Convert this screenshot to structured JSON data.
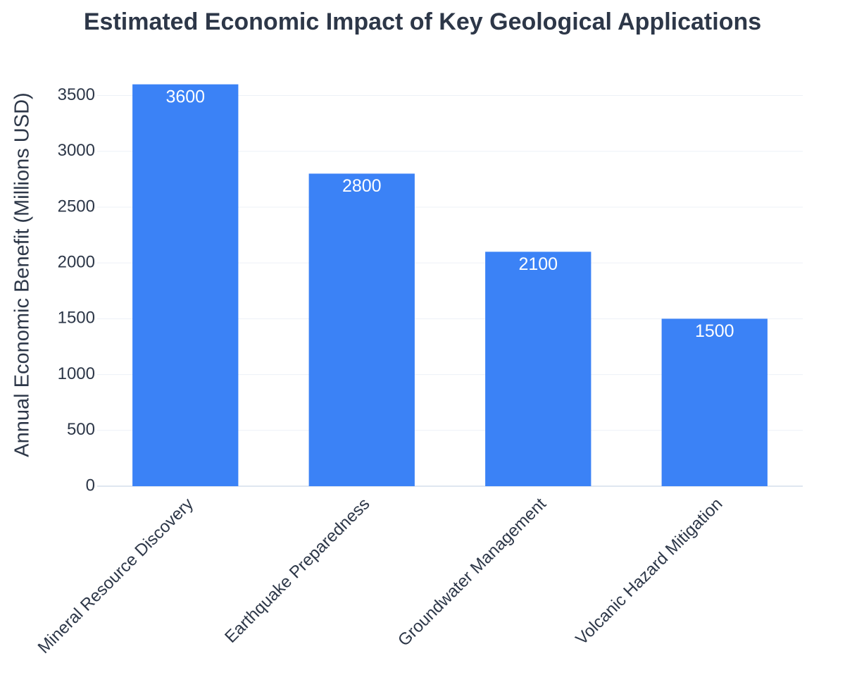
{
  "chart_data": {
    "type": "bar",
    "title": "Estimated Economic Impact of Key Geological Applications",
    "y_label": "Annual Economic Benefit (Millions USD)",
    "categories": [
      "Mineral Resource Discovery",
      "Earthquake Preparedness",
      "Groundwater Management",
      "Volcanic Hazard Mitigation"
    ],
    "values": [
      3600,
      2800,
      2100,
      1500
    ],
    "color": "#3b82f6",
    "ylim": [
      0,
      3800
    ],
    "yticks": [
      0,
      500,
      1000,
      1500,
      2000,
      2500,
      3000,
      3500
    ],
    "grid": true
  }
}
